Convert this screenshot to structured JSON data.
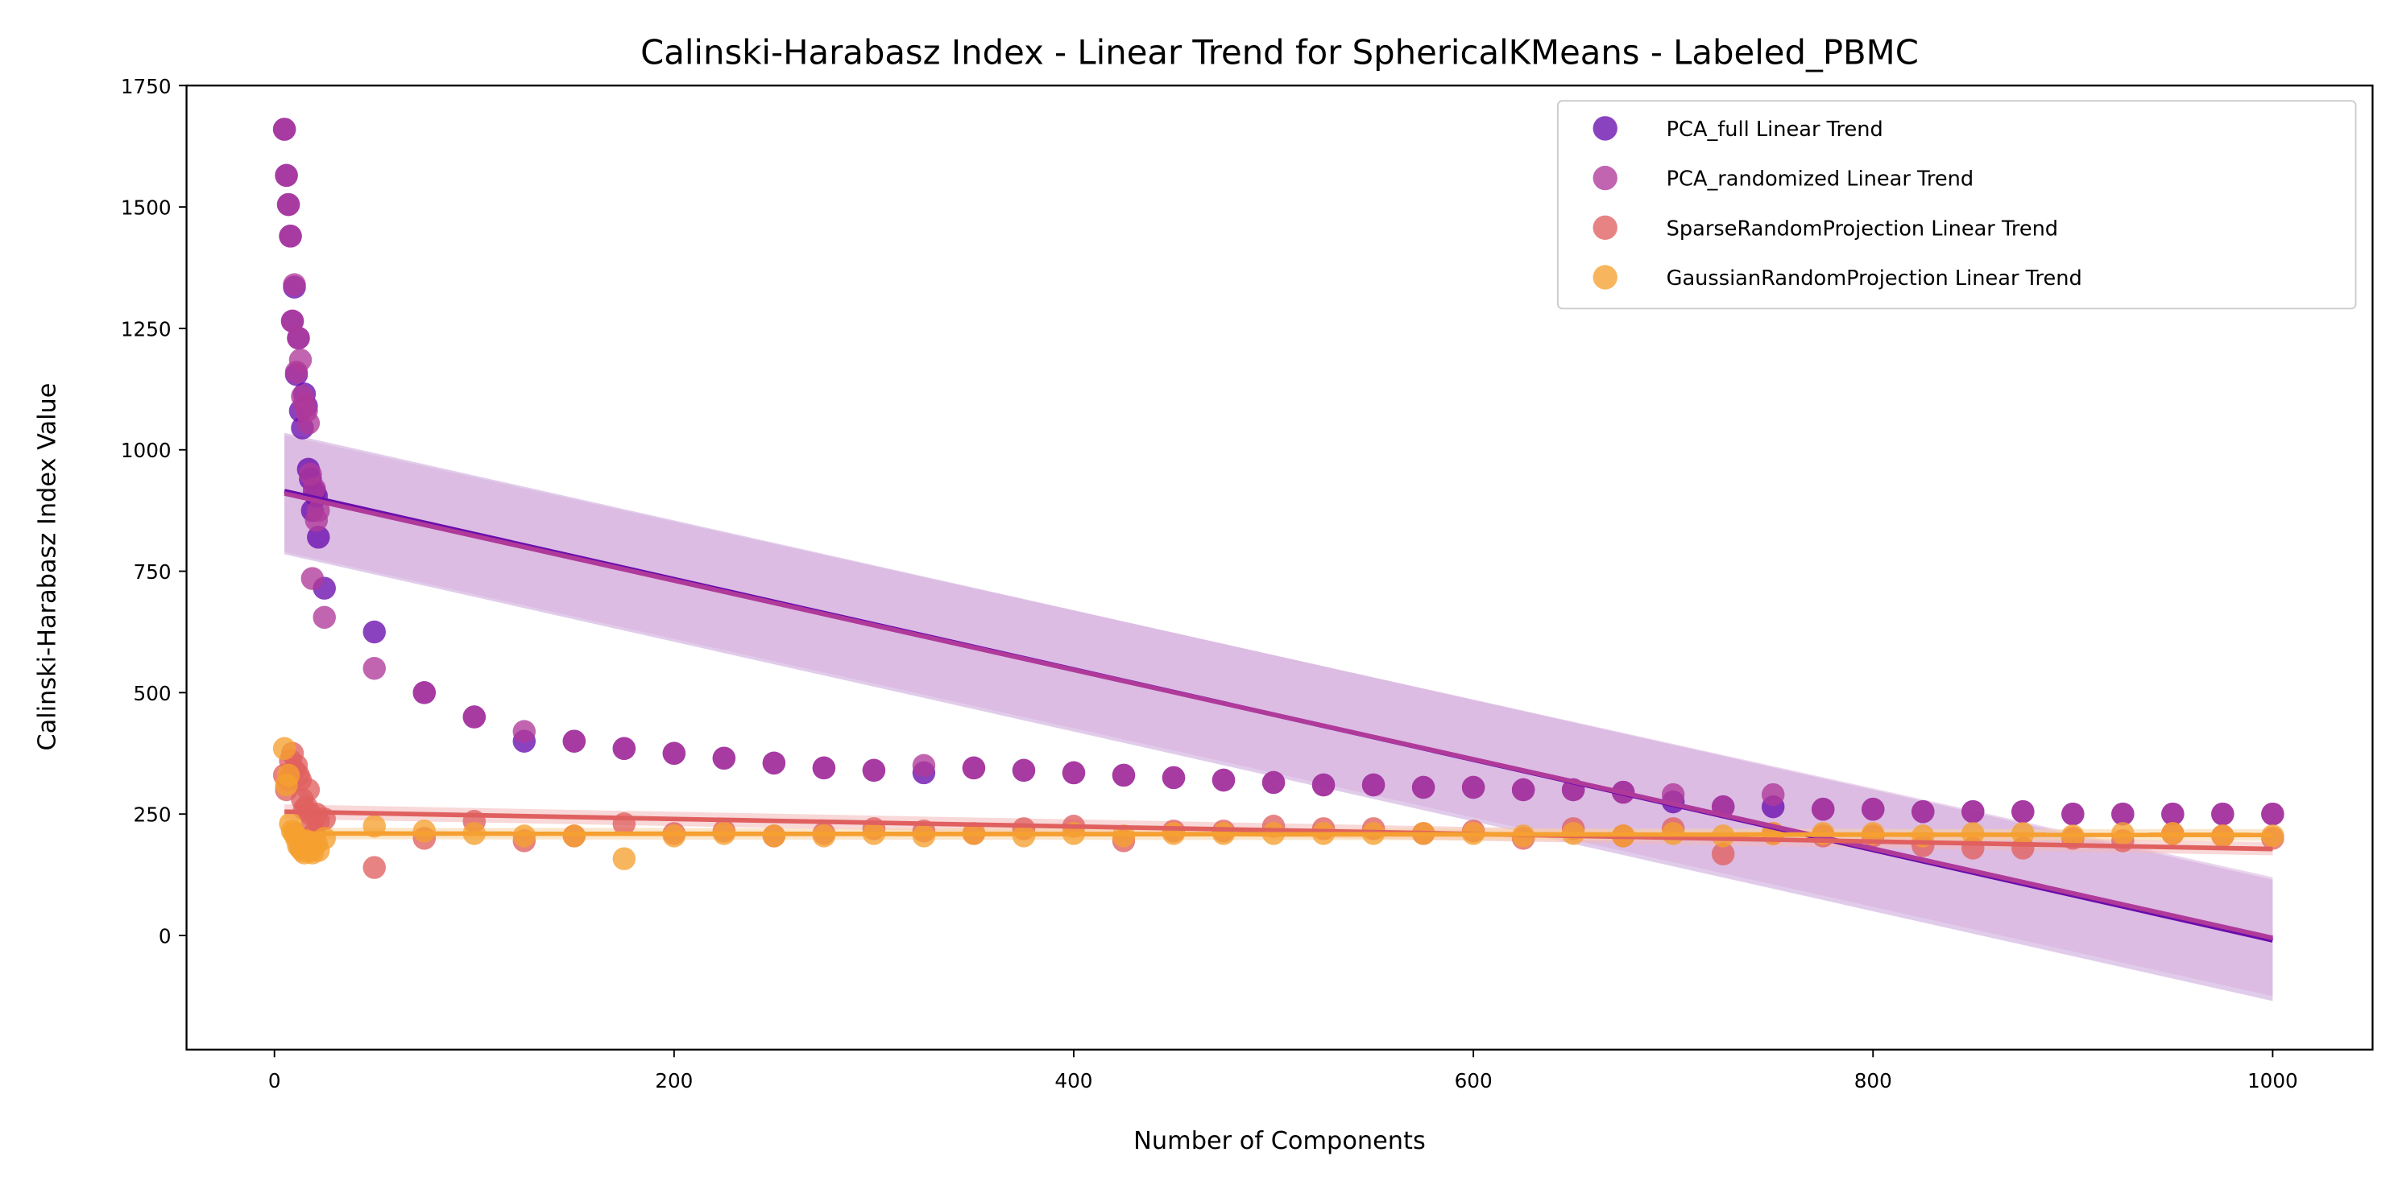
{
  "chart_data": {
    "type": "scatter",
    "title": "Calinski-Harabasz Index - Linear Trend for SphericalKMeans - Labeled_PBMC",
    "xlabel": "Number of Components",
    "ylabel": "Calinski-Harabasz Index Value",
    "xlim": [
      -44,
      1050
    ],
    "ylim": [
      -235,
      1750
    ],
    "xticks": [
      0,
      200,
      400,
      600,
      800,
      1000
    ],
    "yticks": [
      0,
      250,
      500,
      750,
      1000,
      1250,
      1500,
      1750
    ],
    "grid": false,
    "legend_position": "top-right",
    "series": [
      {
        "name": "PCA_full Linear Trend",
        "color": "#6a0dad",
        "band_color": "#c8a0d8",
        "trend": {
          "x": [
            5,
            1000
          ],
          "y": [
            915,
            -10
          ],
          "band_lo_start": 785,
          "band_hi_start": 1035,
          "band_lo_end": -135,
          "band_hi_end": 115
        },
        "points": [
          [
            5,
            1660
          ],
          [
            6,
            1565
          ],
          [
            7,
            1505
          ],
          [
            8,
            1440
          ],
          [
            9,
            1265
          ],
          [
            10,
            1335
          ],
          [
            11,
            1155
          ],
          [
            12,
            1230
          ],
          [
            13,
            1080
          ],
          [
            14,
            1045
          ],
          [
            15,
            1115
          ],
          [
            16,
            1090
          ],
          [
            17,
            960
          ],
          [
            18,
            940
          ],
          [
            19,
            875
          ],
          [
            20,
            915
          ],
          [
            21,
            905
          ],
          [
            22,
            820
          ],
          [
            25,
            715
          ],
          [
            50,
            625
          ],
          [
            75,
            500
          ],
          [
            100,
            450
          ],
          [
            125,
            400
          ],
          [
            150,
            400
          ],
          [
            175,
            385
          ],
          [
            200,
            375
          ],
          [
            225,
            365
          ],
          [
            250,
            355
          ],
          [
            275,
            345
          ],
          [
            300,
            340
          ],
          [
            325,
            335
          ],
          [
            350,
            345
          ],
          [
            375,
            340
          ],
          [
            400,
            335
          ],
          [
            425,
            330
          ],
          [
            450,
            325
          ],
          [
            475,
            320
          ],
          [
            500,
            315
          ],
          [
            525,
            310
          ],
          [
            550,
            310
          ],
          [
            575,
            305
          ],
          [
            600,
            305
          ],
          [
            625,
            300
          ],
          [
            650,
            300
          ],
          [
            675,
            295
          ],
          [
            700,
            275
          ],
          [
            725,
            265
          ],
          [
            750,
            265
          ],
          [
            775,
            260
          ],
          [
            800,
            260
          ],
          [
            825,
            255
          ],
          [
            850,
            255
          ],
          [
            875,
            255
          ],
          [
            900,
            250
          ],
          [
            925,
            250
          ],
          [
            950,
            250
          ],
          [
            975,
            250
          ],
          [
            1000,
            250
          ]
        ]
      },
      {
        "name": "PCA_randomized Linear Trend",
        "color": "#b03a9a",
        "band_color": "#d8b0dc",
        "trend": {
          "x": [
            5,
            1000
          ],
          "y": [
            910,
            -5
          ],
          "band_lo_start": 790,
          "band_hi_start": 1030,
          "band_lo_end": -125,
          "band_hi_end": 120
        },
        "points": [
          [
            5,
            1660
          ],
          [
            6,
            1565
          ],
          [
            7,
            1505
          ],
          [
            8,
            1440
          ],
          [
            9,
            1265
          ],
          [
            10,
            1340
          ],
          [
            11,
            1160
          ],
          [
            12,
            1230
          ],
          [
            13,
            1185
          ],
          [
            14,
            1110
          ],
          [
            15,
            1095
          ],
          [
            16,
            1080
          ],
          [
            17,
            1055
          ],
          [
            18,
            950
          ],
          [
            19,
            735
          ],
          [
            20,
            920
          ],
          [
            21,
            855
          ],
          [
            22,
            875
          ],
          [
            25,
            655
          ],
          [
            50,
            550
          ],
          [
            75,
            500
          ],
          [
            100,
            450
          ],
          [
            125,
            420
          ],
          [
            150,
            400
          ],
          [
            175,
            385
          ],
          [
            200,
            375
          ],
          [
            225,
            365
          ],
          [
            250,
            355
          ],
          [
            275,
            345
          ],
          [
            300,
            340
          ],
          [
            325,
            350
          ],
          [
            350,
            345
          ],
          [
            375,
            340
          ],
          [
            400,
            335
          ],
          [
            425,
            330
          ],
          [
            450,
            325
          ],
          [
            475,
            320
          ],
          [
            500,
            315
          ],
          [
            525,
            310
          ],
          [
            550,
            310
          ],
          [
            575,
            305
          ],
          [
            600,
            305
          ],
          [
            625,
            300
          ],
          [
            650,
            300
          ],
          [
            675,
            295
          ],
          [
            700,
            290
          ],
          [
            725,
            265
          ],
          [
            750,
            290
          ],
          [
            775,
            260
          ],
          [
            800,
            260
          ],
          [
            825,
            255
          ],
          [
            850,
            255
          ],
          [
            875,
            255
          ],
          [
            900,
            250
          ],
          [
            925,
            250
          ],
          [
            950,
            250
          ],
          [
            975,
            250
          ],
          [
            1000,
            250
          ]
        ]
      },
      {
        "name": "SparseRandomProjection Linear Trend",
        "color": "#e06060",
        "band_color": "#f2b8b8",
        "trend": {
          "x": [
            5,
            1000
          ],
          "y": [
            255,
            178
          ],
          "band_lo_start": 240,
          "band_hi_start": 270,
          "band_lo_end": 165,
          "band_hi_end": 192
        },
        "points": [
          [
            5,
            330
          ],
          [
            6,
            300
          ],
          [
            7,
            320
          ],
          [
            8,
            360
          ],
          [
            9,
            375
          ],
          [
            10,
            340
          ],
          [
            11,
            350
          ],
          [
            12,
            330
          ],
          [
            13,
            320
          ],
          [
            14,
            280
          ],
          [
            15,
            260
          ],
          [
            16,
            265
          ],
          [
            17,
            300
          ],
          [
            18,
            250
          ],
          [
            19,
            230
          ],
          [
            20,
            210
          ],
          [
            21,
            250
          ],
          [
            22,
            235
          ],
          [
            25,
            240
          ],
          [
            50,
            140
          ],
          [
            75,
            200
          ],
          [
            100,
            235
          ],
          [
            125,
            195
          ],
          [
            150,
            205
          ],
          [
            175,
            230
          ],
          [
            200,
            210
          ],
          [
            225,
            215
          ],
          [
            250,
            205
          ],
          [
            275,
            210
          ],
          [
            300,
            220
          ],
          [
            325,
            215
          ],
          [
            350,
            210
          ],
          [
            375,
            220
          ],
          [
            400,
            225
          ],
          [
            425,
            195
          ],
          [
            450,
            215
          ],
          [
            475,
            215
          ],
          [
            500,
            225
          ],
          [
            525,
            220
          ],
          [
            550,
            220
          ],
          [
            575,
            210
          ],
          [
            600,
            215
          ],
          [
            625,
            200
          ],
          [
            650,
            220
          ],
          [
            675,
            205
          ],
          [
            700,
            220
          ],
          [
            725,
            168
          ],
          [
            750,
            210
          ],
          [
            775,
            205
          ],
          [
            800,
            205
          ],
          [
            825,
            185
          ],
          [
            850,
            180
          ],
          [
            875,
            180
          ],
          [
            900,
            200
          ],
          [
            925,
            195
          ],
          [
            950,
            210
          ],
          [
            975,
            205
          ],
          [
            1000,
            200
          ]
        ]
      },
      {
        "name": "GaussianRandomProjection Linear Trend",
        "color": "#f5a030",
        "band_color": "#f9d2a0",
        "trend": {
          "x": [
            5,
            1000
          ],
          "y": [
            210,
            207
          ],
          "band_lo_start": 198,
          "band_hi_start": 222,
          "band_lo_end": 195,
          "band_hi_end": 219
        },
        "points": [
          [
            5,
            385
          ],
          [
            6,
            310
          ],
          [
            7,
            330
          ],
          [
            8,
            230
          ],
          [
            9,
            215
          ],
          [
            10,
            210
          ],
          [
            11,
            200
          ],
          [
            12,
            185
          ],
          [
            13,
            180
          ],
          [
            14,
            175
          ],
          [
            15,
            170
          ],
          [
            16,
            195
          ],
          [
            17,
            180
          ],
          [
            18,
            175
          ],
          [
            19,
            170
          ],
          [
            20,
            185
          ],
          [
            21,
            190
          ],
          [
            22,
            175
          ],
          [
            25,
            200
          ],
          [
            50,
            225
          ],
          [
            75,
            215
          ],
          [
            100,
            210
          ],
          [
            125,
            205
          ],
          [
            150,
            205
          ],
          [
            175,
            158
          ],
          [
            200,
            205
          ],
          [
            225,
            210
          ],
          [
            250,
            205
          ],
          [
            275,
            205
          ],
          [
            300,
            210
          ],
          [
            325,
            205
          ],
          [
            350,
            210
          ],
          [
            375,
            205
          ],
          [
            400,
            210
          ],
          [
            425,
            205
          ],
          [
            450,
            210
          ],
          [
            475,
            210
          ],
          [
            500,
            210
          ],
          [
            525,
            210
          ],
          [
            550,
            210
          ],
          [
            575,
            210
          ],
          [
            600,
            210
          ],
          [
            625,
            205
          ],
          [
            650,
            210
          ],
          [
            675,
            205
          ],
          [
            700,
            210
          ],
          [
            725,
            205
          ],
          [
            750,
            210
          ],
          [
            775,
            210
          ],
          [
            800,
            210
          ],
          [
            825,
            205
          ],
          [
            850,
            210
          ],
          [
            875,
            210
          ],
          [
            900,
            205
          ],
          [
            925,
            210
          ],
          [
            950,
            210
          ],
          [
            975,
            205
          ],
          [
            1000,
            205
          ]
        ]
      }
    ]
  }
}
